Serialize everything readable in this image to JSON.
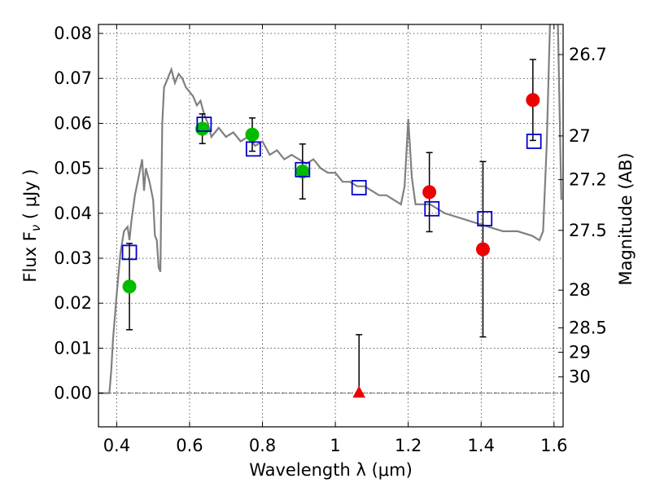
{
  "chart_data": {
    "type": "scatter",
    "xlabel": "Wavelength  λ (μm)",
    "ylabel_left": "Flux  F",
    "ylabel_left_sub": "ν",
    "ylabel_left_unit": "  ( μJy )",
    "ylabel_right": "Magnitude (AB)",
    "xlim": [
      0.35,
      1.625
    ],
    "ylim": [
      -0.0075,
      0.082
    ],
    "grid": true,
    "x_ticks": [
      0.4,
      0.6,
      0.8,
      1.0,
      1.2,
      1.4,
      1.6
    ],
    "x_tick_labels": [
      "0.4",
      "0.6",
      "0.8",
      "1",
      "1.2",
      "1.4",
      "1.6"
    ],
    "y_ticks": [
      0.0,
      0.01,
      0.02,
      0.03,
      0.04,
      0.05,
      0.06,
      0.07,
      0.08
    ],
    "y_tick_labels": [
      "0.00",
      "0.01",
      "0.02",
      "0.03",
      "0.04",
      "0.05",
      "0.06",
      "0.07",
      "0.08"
    ],
    "right_ticks": [
      {
        "label": "26.7",
        "flux": 0.0753
      },
      {
        "label": "27",
        "flux": 0.0572
      },
      {
        "label": "27.2",
        "flux": 0.0475
      },
      {
        "label": "27.5",
        "flux": 0.0362
      },
      {
        "label": "28",
        "flux": 0.0229
      },
      {
        "label": "28.5",
        "flux": 0.0145
      },
      {
        "label": "29",
        "flux": 0.0091
      },
      {
        "label": "30",
        "flux": 0.0036
      }
    ],
    "model_curve": {
      "color": "#808080",
      "points": [
        [
          0.35,
          0.0
        ],
        [
          0.38,
          0.0
        ],
        [
          0.385,
          0.005
        ],
        [
          0.39,
          0.012
        ],
        [
          0.4,
          0.022
        ],
        [
          0.41,
          0.031
        ],
        [
          0.42,
          0.036
        ],
        [
          0.43,
          0.037
        ],
        [
          0.435,
          0.034
        ],
        [
          0.44,
          0.038
        ],
        [
          0.45,
          0.044
        ],
        [
          0.46,
          0.048
        ],
        [
          0.47,
          0.052
        ],
        [
          0.475,
          0.045
        ],
        [
          0.48,
          0.05
        ],
        [
          0.49,
          0.047
        ],
        [
          0.5,
          0.043
        ],
        [
          0.505,
          0.035
        ],
        [
          0.51,
          0.034
        ],
        [
          0.515,
          0.028
        ],
        [
          0.52,
          0.027
        ],
        [
          0.525,
          0.06
        ],
        [
          0.53,
          0.068
        ],
        [
          0.54,
          0.07
        ],
        [
          0.55,
          0.072
        ],
        [
          0.56,
          0.069
        ],
        [
          0.57,
          0.071
        ],
        [
          0.58,
          0.07
        ],
        [
          0.59,
          0.068
        ],
        [
          0.6,
          0.067
        ],
        [
          0.61,
          0.066
        ],
        [
          0.62,
          0.064
        ],
        [
          0.63,
          0.065
        ],
        [
          0.64,
          0.062
        ],
        [
          0.65,
          0.06
        ],
        [
          0.66,
          0.057
        ],
        [
          0.67,
          0.058
        ],
        [
          0.68,
          0.059
        ],
        [
          0.7,
          0.057
        ],
        [
          0.72,
          0.058
        ],
        [
          0.74,
          0.056
        ],
        [
          0.76,
          0.057
        ],
        [
          0.78,
          0.055
        ],
        [
          0.8,
          0.056
        ],
        [
          0.82,
          0.053
        ],
        [
          0.84,
          0.054
        ],
        [
          0.86,
          0.052
        ],
        [
          0.88,
          0.053
        ],
        [
          0.9,
          0.052
        ],
        [
          0.92,
          0.051
        ],
        [
          0.94,
          0.052
        ],
        [
          0.96,
          0.05
        ],
        [
          0.98,
          0.049
        ],
        [
          1.0,
          0.049
        ],
        [
          1.02,
          0.047
        ],
        [
          1.04,
          0.047
        ],
        [
          1.06,
          0.046
        ],
        [
          1.08,
          0.046
        ],
        [
          1.1,
          0.045
        ],
        [
          1.12,
          0.044
        ],
        [
          1.14,
          0.044
        ],
        [
          1.16,
          0.043
        ],
        [
          1.18,
          0.042
        ],
        [
          1.19,
          0.046
        ],
        [
          1.2,
          0.061
        ],
        [
          1.21,
          0.048
        ],
        [
          1.22,
          0.042
        ],
        [
          1.26,
          0.042
        ],
        [
          1.3,
          0.04
        ],
        [
          1.34,
          0.039
        ],
        [
          1.38,
          0.038
        ],
        [
          1.42,
          0.037
        ],
        [
          1.46,
          0.036
        ],
        [
          1.5,
          0.036
        ],
        [
          1.54,
          0.035
        ],
        [
          1.56,
          0.034
        ],
        [
          1.57,
          0.036
        ],
        [
          1.58,
          0.055
        ],
        [
          1.59,
          0.085
        ],
        [
          1.6,
          0.085
        ],
        [
          1.61,
          0.085
        ],
        [
          1.62,
          0.043
        ]
      ]
    },
    "open_squares": {
      "color": "#0000cc",
      "points": [
        [
          0.435,
          0.0313
        ],
        [
          0.64,
          0.0598
        ],
        [
          0.775,
          0.0543
        ],
        [
          0.91,
          0.0497
        ],
        [
          1.065,
          0.0457
        ],
        [
          1.265,
          0.041
        ],
        [
          1.41,
          0.0388
        ],
        [
          1.545,
          0.056
        ]
      ]
    },
    "green_points": {
      "color": "#00bb00",
      "points": [
        [
          0.435,
          0.0237,
          0.0096
        ],
        [
          0.635,
          0.0588,
          0.0033
        ],
        [
          0.772,
          0.0575,
          0.0037
        ],
        [
          0.91,
          0.0493,
          0.0061
        ]
      ]
    },
    "red_points": {
      "color": "#ee0000",
      "points": [
        [
          1.258,
          0.0447,
          0.0088
        ],
        [
          1.405,
          0.032,
          0.0195
        ],
        [
          1.542,
          0.0652,
          0.009
        ]
      ]
    },
    "upper_limit": {
      "color": "#ee0000",
      "x": 1.065,
      "y": 0.0,
      "err_top": 0.013
    }
  }
}
